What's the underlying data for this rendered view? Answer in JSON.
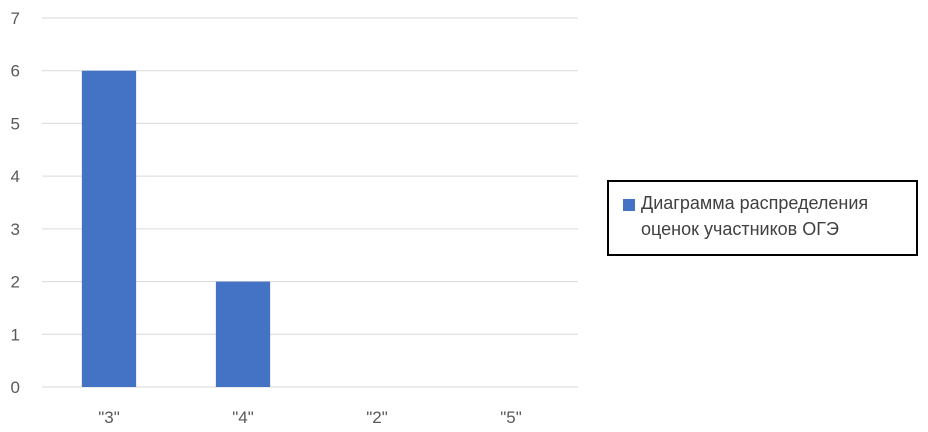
{
  "chart_data": {
    "type": "bar",
    "categories": [
      "\"3\"",
      "\"4\"",
      "\"2\"",
      "\"5\""
    ],
    "series": [
      {
        "name": "Диаграмма распределения оценок участников ОГЭ",
        "values": [
          6,
          2,
          0,
          0
        ],
        "color": "#4472C4"
      }
    ],
    "title": "",
    "xlabel": "",
    "ylabel": "",
    "ylim": [
      0,
      7
    ],
    "yticks": [
      0,
      1,
      2,
      3,
      4,
      5,
      6,
      7
    ],
    "grid": true,
    "gridColor": "#D9D9D9",
    "legendPosition": "right"
  }
}
